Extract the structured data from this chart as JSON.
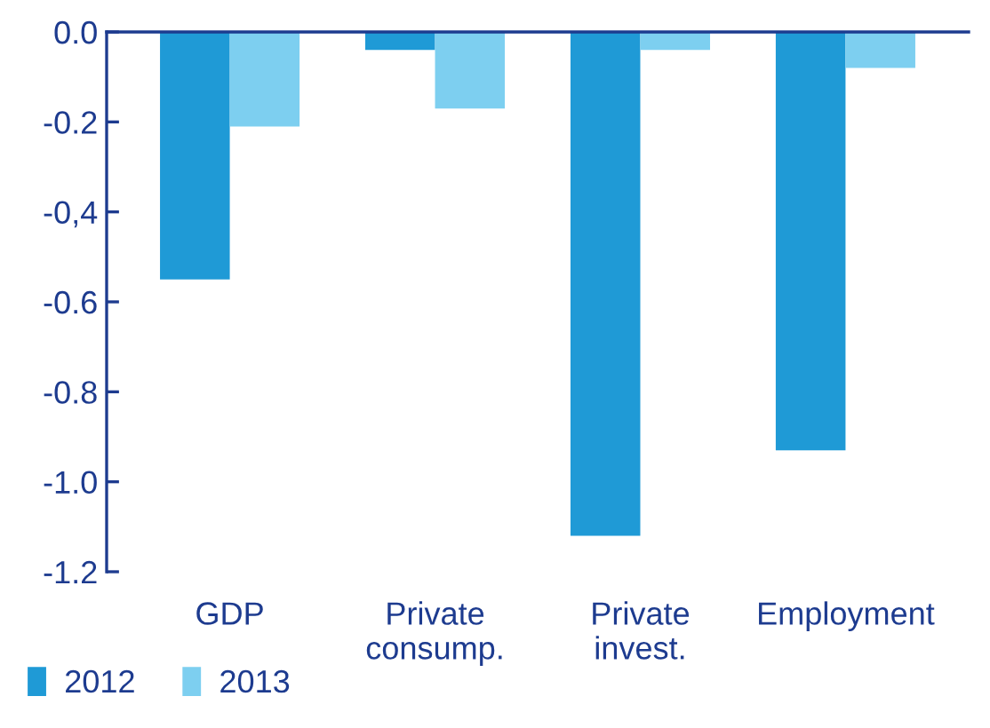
{
  "chart_data": {
    "type": "bar",
    "categories": [
      "GDP",
      "Private\nconsump.",
      "Private\ninvest.",
      "Employment"
    ],
    "series": [
      {
        "name": "2012",
        "color": "#1f9ad6",
        "values": [
          -0.55,
          -0.04,
          -1.12,
          -0.93
        ]
      },
      {
        "name": "2013",
        "color": "#7dcff0",
        "values": [
          -0.21,
          -0.17,
          -0.04,
          -0.08
        ]
      }
    ],
    "ylim": [
      -1.2,
      0
    ],
    "yticks": [
      {
        "value": 0,
        "label": "0.0"
      },
      -0.2,
      {
        "value": -0.4,
        "label": "-0,4"
      },
      -0.6,
      -0.8,
      {
        "value": -1.0,
        "label": "-1.0"
      },
      -1.2
    ],
    "grid": false,
    "legend": "bottom left"
  }
}
